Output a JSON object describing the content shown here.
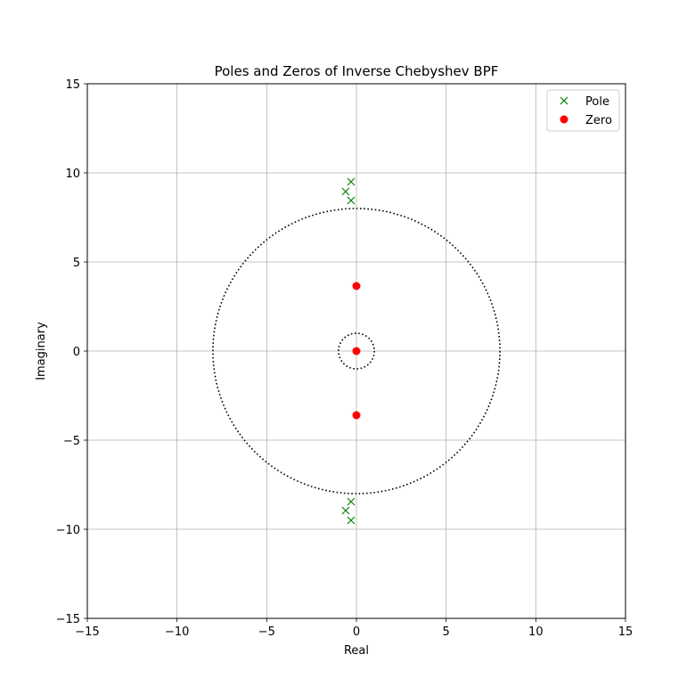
{
  "chart_data": {
    "type": "scatter",
    "title": "Poles and Zeros  of Inverse Chebyshev BPF",
    "xlabel": "Real",
    "ylabel": "Imaginary",
    "xlim": [
      -15,
      15
    ],
    "ylim": [
      -15,
      15
    ],
    "xticks": [
      -15,
      -10,
      -5,
      0,
      5,
      10,
      15
    ],
    "yticks": [
      -15,
      -10,
      -5,
      0,
      5,
      10,
      15
    ],
    "grid": true,
    "legend_position": "top-right",
    "series": [
      {
        "name": "Pole",
        "marker": "x",
        "color": "#008000",
        "points": [
          [
            -0.3,
            9.5
          ],
          [
            -0.6,
            8.95
          ],
          [
            -0.3,
            8.45
          ],
          [
            -0.3,
            -8.45
          ],
          [
            -0.6,
            -8.95
          ],
          [
            -0.3,
            -9.5
          ]
        ]
      },
      {
        "name": "Zero",
        "marker": "o",
        "color": "#ff0000",
        "points": [
          [
            0,
            3.65
          ],
          [
            0,
            0
          ],
          [
            0,
            -3.6
          ]
        ]
      }
    ],
    "reference_circles": [
      {
        "radius": 8,
        "style": "dotted",
        "color": "#000000"
      },
      {
        "radius": 1,
        "style": "dotted",
        "color": "#000000"
      }
    ]
  }
}
